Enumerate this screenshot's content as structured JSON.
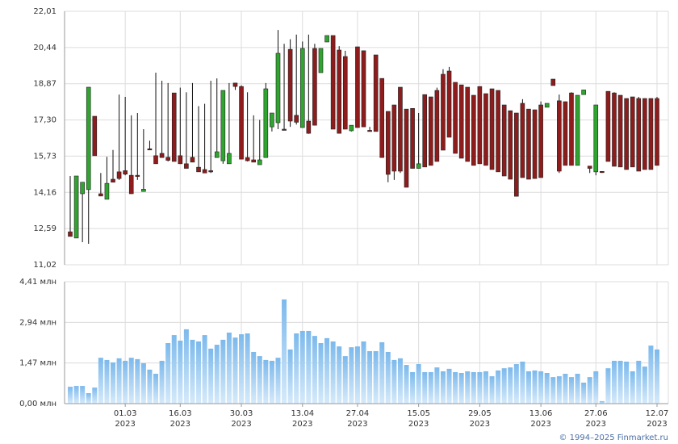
{
  "chart_data": [
    {
      "type": "candlestick",
      "up_color": "#2fa52f",
      "down_color": "#8e1c1c",
      "outline": "#222222",
      "ylim": [
        11.02,
        22.01
      ],
      "yticks": [
        {
          "value": 22.01,
          "label": "22,01"
        },
        {
          "value": 20.44,
          "label": "20,44"
        },
        {
          "value": 18.87,
          "label": "18,87"
        },
        {
          "value": 17.3,
          "label": "17,30"
        },
        {
          "value": 15.73,
          "label": "15,73"
        },
        {
          "value": 14.16,
          "label": "14,16"
        },
        {
          "value": 12.59,
          "label": "12,59"
        },
        {
          "value": 11.02,
          "label": "11,02"
        }
      ],
      "grid": true,
      "open": [
        12.45,
        12.18,
        14.1,
        14.28,
        17.46,
        14.1,
        13.86,
        14.73,
        15.05,
        15.1,
        14.9,
        14.9,
        14.2,
        16.05,
        15.75,
        15.85,
        15.68,
        18.47,
        15.75,
        15.4,
        15.68,
        15.25,
        15.15,
        15.1,
        15.67,
        15.53,
        15.4,
        18.9,
        18.75,
        15.67,
        15.57,
        15.36,
        15.67,
        17.0,
        17.18,
        16.9,
        20.36,
        17.5,
        16.97,
        17.25,
        20.4,
        19.35,
        20.68,
        20.96,
        20.33,
        20.05,
        16.83,
        20.47,
        20.3,
        16.85,
        20.12,
        19.1,
        17.67,
        17.95,
        18.72,
        17.77,
        17.8,
        15.2,
        18.4,
        18.3,
        18.58,
        19.28,
        19.42,
        18.93,
        18.82,
        18.72,
        18.37,
        18.75,
        18.44,
        18.65,
        18.58,
        17.95,
        17.7,
        17.6,
        18.02,
        17.77,
        17.74,
        17.95,
        17.85,
        19.07,
        18.13,
        18.09,
        18.47,
        15.33,
        18.4,
        15.3,
        15.05,
        15.07,
        18.54,
        18.47,
        18.37,
        18.23,
        18.3,
        18.23,
        18.23,
        18.23,
        18.23
      ],
      "high": [
        14.87,
        14.87,
        14.6,
        18.72,
        17.46,
        15.0,
        15.7,
        16.0,
        18.4,
        18.3,
        17.5,
        17.6,
        16.9,
        16.4,
        19.35,
        19.0,
        18.9,
        18.47,
        18.7,
        18.5,
        18.9,
        17.9,
        18.0,
        19.0,
        19.1,
        18.58,
        18.9,
        18.9,
        18.8,
        18.5,
        17.5,
        17.3,
        18.9,
        17.6,
        21.2,
        20.6,
        20.8,
        21.0,
        20.7,
        21.0,
        20.6,
        20.4,
        20.96,
        20.96,
        20.5,
        20.3,
        17.07,
        20.47,
        20.3,
        17.0,
        20.12,
        19.1,
        17.67,
        17.95,
        18.72,
        17.77,
        17.8,
        17.6,
        18.4,
        18.3,
        18.7,
        19.5,
        19.6,
        18.93,
        18.82,
        18.72,
        18.37,
        18.75,
        18.44,
        18.65,
        18.58,
        17.95,
        17.7,
        17.6,
        18.2,
        17.77,
        17.74,
        18.1,
        18.02,
        19.07,
        18.4,
        18.1,
        18.5,
        18.37,
        18.6,
        15.3,
        17.95,
        15.07,
        18.54,
        18.5,
        18.37,
        18.23,
        18.3,
        18.3,
        18.23,
        18.23,
        18.3
      ],
      "low": [
        12.25,
        12.18,
        12.0,
        11.93,
        15.75,
        14.0,
        13.86,
        14.6,
        14.7,
        14.9,
        14.1,
        14.7,
        14.2,
        16.0,
        15.4,
        15.67,
        15.5,
        15.5,
        15.4,
        15.2,
        15.47,
        15.05,
        15.0,
        15.0,
        15.67,
        15.4,
        15.4,
        18.6,
        15.6,
        15.5,
        15.47,
        15.36,
        15.67,
        16.8,
        16.9,
        16.85,
        17.0,
        17.1,
        16.97,
        16.7,
        17.07,
        19.35,
        20.68,
        16.9,
        16.72,
        16.9,
        16.8,
        16.97,
        17.0,
        16.8,
        16.8,
        15.67,
        14.6,
        14.7,
        15.0,
        14.38,
        15.2,
        15.2,
        15.26,
        15.33,
        15.5,
        15.99,
        16.55,
        15.85,
        15.64,
        15.5,
        15.33,
        15.4,
        15.33,
        15.15,
        15.05,
        14.87,
        14.73,
        13.99,
        14.8,
        14.73,
        14.76,
        14.8,
        17.85,
        18.79,
        15.0,
        15.33,
        15.33,
        15.33,
        18.4,
        15.0,
        14.9,
        15.0,
        15.5,
        15.29,
        15.26,
        15.15,
        15.26,
        15.08,
        15.15,
        15.15,
        15.33
      ],
      "close": [
        12.25,
        14.87,
        14.6,
        18.72,
        15.75,
        14.0,
        14.55,
        14.6,
        14.76,
        14.95,
        14.1,
        14.85,
        14.3,
        16.0,
        15.4,
        15.67,
        15.55,
        15.5,
        15.4,
        15.2,
        15.47,
        15.05,
        15.0,
        15.05,
        15.92,
        18.58,
        15.85,
        18.75,
        15.6,
        15.53,
        15.47,
        15.57,
        18.65,
        17.6,
        20.19,
        16.85,
        17.25,
        17.2,
        20.4,
        16.72,
        17.07,
        20.4,
        20.96,
        16.9,
        16.72,
        16.9,
        17.07,
        16.97,
        17.0,
        16.82,
        16.8,
        15.67,
        14.94,
        15.08,
        15.08,
        14.38,
        15.2,
        15.4,
        15.26,
        15.33,
        15.5,
        15.99,
        16.55,
        15.85,
        15.64,
        15.5,
        15.33,
        15.4,
        15.33,
        15.15,
        15.05,
        14.87,
        14.73,
        13.99,
        14.8,
        14.73,
        14.76,
        14.8,
        18.02,
        18.79,
        15.08,
        15.33,
        15.33,
        18.37,
        18.6,
        15.2,
        17.95,
        15.05,
        15.5,
        15.29,
        15.26,
        15.15,
        15.26,
        15.08,
        15.15,
        15.15,
        15.33
      ]
    },
    {
      "type": "bar",
      "color": "#7cb9ec",
      "ylim": [
        0,
        4.41
      ],
      "yticks": [
        {
          "value": 4.41,
          "label": "4,41 млн"
        },
        {
          "value": 2.94,
          "label": "2,94 млн"
        },
        {
          "value": 1.47,
          "label": "1,47 млн"
        },
        {
          "value": 0,
          "label": "0,00 млн"
        }
      ],
      "grid": true,
      "categories": [
        null,
        null,
        null,
        null,
        null,
        null,
        null,
        null,
        null,
        [
          "01.03",
          "2023"
        ],
        null,
        null,
        null,
        null,
        null,
        null,
        null,
        null,
        [
          "16.03",
          "2023"
        ],
        null,
        null,
        null,
        null,
        null,
        null,
        null,
        null,
        null,
        [
          "30.03",
          "2023"
        ],
        null,
        null,
        null,
        null,
        null,
        null,
        null,
        null,
        null,
        [
          "13.04",
          "2023"
        ],
        null,
        null,
        null,
        null,
        null,
        null,
        null,
        null,
        [
          "27.04",
          "2023"
        ],
        null,
        null,
        null,
        null,
        null,
        null,
        null,
        null,
        null,
        [
          "15.05",
          "2023"
        ],
        null,
        null,
        null,
        null,
        null,
        null,
        null,
        null,
        null,
        [
          "29.05",
          "2023"
        ],
        null,
        null,
        null,
        null,
        null,
        null,
        null,
        null,
        null,
        [
          "13.06",
          "2023"
        ],
        null,
        null,
        null,
        null,
        null,
        null,
        null,
        null,
        [
          "27.06",
          "2023"
        ],
        null,
        null,
        null,
        null,
        null,
        null,
        null,
        null,
        null,
        [
          "12.07",
          "2023"
        ]
      ],
      "values": [
        0.61,
        0.64,
        0.64,
        0.38,
        0.58,
        1.66,
        1.58,
        1.49,
        1.64,
        1.55,
        1.66,
        1.61,
        1.46,
        1.23,
        1.08,
        1.55,
        2.19,
        2.48,
        2.28,
        2.69,
        2.31,
        2.25,
        2.48,
        1.99,
        2.13,
        2.31,
        2.57,
        2.39,
        2.51,
        2.54,
        1.87,
        1.72,
        1.58,
        1.55,
        1.66,
        3.77,
        1.96,
        2.54,
        2.63,
        2.63,
        2.45,
        2.19,
        2.37,
        2.25,
        2.07,
        1.72,
        2.04,
        2.07,
        2.25,
        1.9,
        1.9,
        2.22,
        1.87,
        1.58,
        1.64,
        1.4,
        1.14,
        1.43,
        1.14,
        1.14,
        1.31,
        1.17,
        1.26,
        1.14,
        1.11,
        1.17,
        1.14,
        1.14,
        1.17,
        0.99,
        1.2,
        1.28,
        1.31,
        1.43,
        1.52,
        1.17,
        1.2,
        1.17,
        1.11,
        0.96,
        0.99,
        1.08,
        0.96,
        1.08,
        0.76,
        0.96,
        1.17,
        0.09,
        1.28,
        1.55,
        1.55,
        1.52,
        1.17,
        1.55,
        1.34,
        2.1,
        1.96
      ]
    }
  ],
  "footer": "© 1994–2025 Finmarket.ru"
}
